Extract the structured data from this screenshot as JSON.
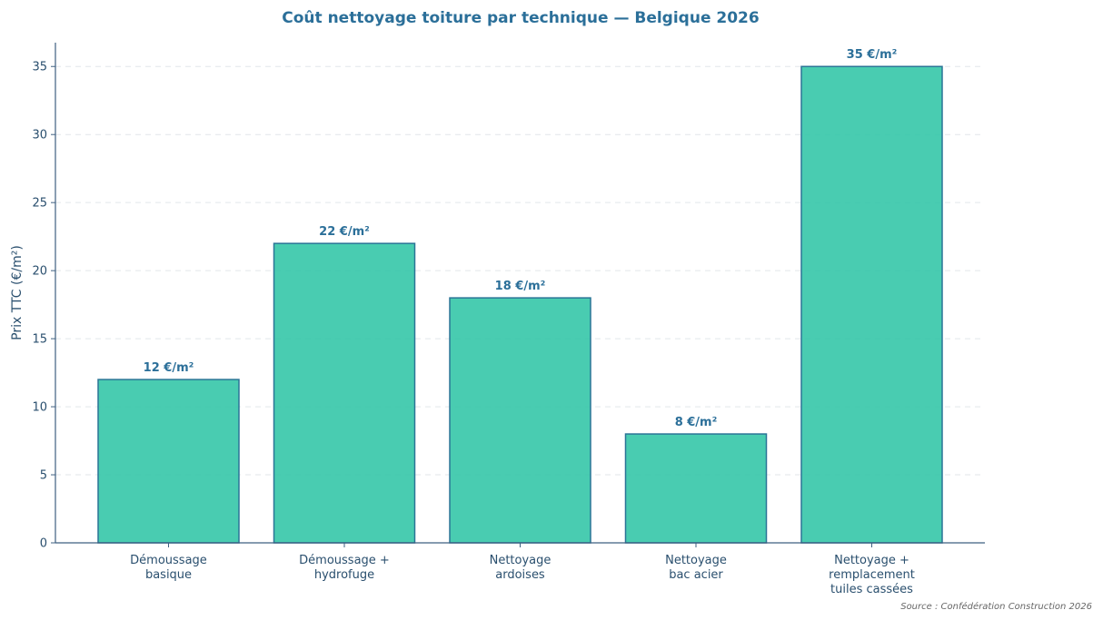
{
  "chart_data": {
    "type": "bar",
    "title": "Coût nettoyage toiture par technique — Belgique 2026",
    "ylabel": "Prix TTC (€/m²)",
    "xlabel": "",
    "categories": [
      [
        "Démoussage",
        "basique"
      ],
      [
        "Démoussage +",
        "hydrofuge"
      ],
      [
        "Nettoyage",
        "ardoises"
      ],
      [
        "Nettoyage",
        "bac acier"
      ],
      [
        "Nettoyage +",
        "remplacement",
        "tuiles cassées"
      ]
    ],
    "values": [
      12,
      22,
      18,
      8,
      35
    ],
    "data_labels": [
      "12 €/m²",
      "22 €/m²",
      "18 €/m²",
      "8 €/m²",
      "35 €/m²"
    ],
    "ylim": [
      0,
      36.75
    ],
    "yticks": [
      0,
      5,
      10,
      15,
      20,
      25,
      30,
      35
    ],
    "grid": "horizontal-dashed",
    "legend": "none",
    "source": "Source : Confédération Construction 2026",
    "colors": {
      "bar_fill": "#2EC4A5",
      "bar_edge": "#2A7496",
      "title": "#2B6F99",
      "data_label": "#2B6F99",
      "axis": "#3E5F80",
      "tick_text": "#2A4F6E",
      "grid": "#E2E6EA",
      "source": "#666666"
    }
  }
}
